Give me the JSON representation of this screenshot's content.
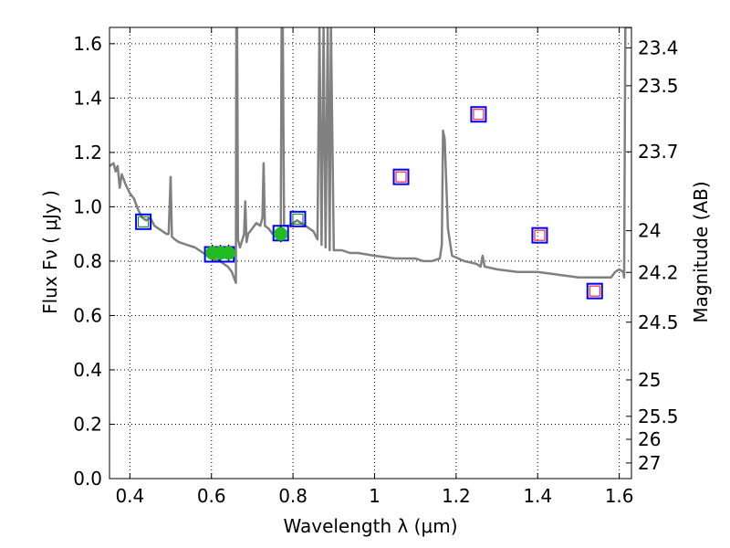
{
  "chart_data": {
    "type": "scatter",
    "xlabel": "Wavelength  λ (μm)",
    "ylabel": "Flux  Fν  ( μJy )",
    "y2label": "Magnitude (AB)",
    "xlim": [
      0.35,
      1.63
    ],
    "ylim": [
      0.0,
      1.66
    ],
    "grid": true,
    "x_ticks": [
      {
        "value": 0.4,
        "label": "0.4"
      },
      {
        "value": 0.6,
        "label": "0.6"
      },
      {
        "value": 0.8,
        "label": "0.8"
      },
      {
        "value": 1.0,
        "label": "1"
      },
      {
        "value": 1.2,
        "label": "1.2"
      },
      {
        "value": 1.4,
        "label": "1.4"
      },
      {
        "value": 1.6,
        "label": "1.6"
      }
    ],
    "y_ticks": [
      {
        "value": 0.0,
        "label": "0.0"
      },
      {
        "value": 0.2,
        "label": "0.2"
      },
      {
        "value": 0.4,
        "label": "0.4"
      },
      {
        "value": 0.6,
        "label": "0.6"
      },
      {
        "value": 0.8,
        "label": "0.8"
      },
      {
        "value": 1.0,
        "label": "1.0"
      },
      {
        "value": 1.2,
        "label": "1.2"
      },
      {
        "value": 1.4,
        "label": "1.4"
      },
      {
        "value": 1.6,
        "label": "1.6"
      }
    ],
    "y2_ticks": [
      {
        "value": 23.4,
        "label": "23.4"
      },
      {
        "value": 23.5,
        "label": "23.5"
      },
      {
        "value": 23.7,
        "label": "23.7"
      },
      {
        "value": 24,
        "label": "24"
      },
      {
        "value": 24.2,
        "label": "24.2"
      },
      {
        "value": 24.5,
        "label": "24.5"
      },
      {
        "value": 25,
        "label": "25"
      },
      {
        "value": 25.5,
        "label": "25.5"
      },
      {
        "value": 26,
        "label": "26"
      },
      {
        "value": 27,
        "label": "27"
      }
    ],
    "colors": {
      "model": "#808080",
      "box": "#0000ff",
      "inner_green": "#008000",
      "inner_red": "#ff0000",
      "point_fill": "#22bb22"
    },
    "model_spectrum": [
      [
        0.35,
        1.15
      ],
      [
        0.36,
        1.16
      ],
      [
        0.365,
        1.13
      ],
      [
        0.37,
        1.15
      ],
      [
        0.375,
        1.07
      ],
      [
        0.38,
        1.12
      ],
      [
        0.39,
        1.08
      ],
      [
        0.4,
        1.05
      ],
      [
        0.41,
        1.03
      ],
      [
        0.42,
        0.99
      ],
      [
        0.43,
        0.96
      ],
      [
        0.44,
        0.95
      ],
      [
        0.45,
        0.96
      ],
      [
        0.46,
        0.93
      ],
      [
        0.47,
        0.92
      ],
      [
        0.48,
        0.91
      ],
      [
        0.49,
        0.9
      ],
      [
        0.495,
        0.9
      ],
      [
        0.5,
        1.11
      ],
      [
        0.503,
        0.89
      ],
      [
        0.51,
        0.88
      ],
      [
        0.52,
        0.87
      ],
      [
        0.54,
        0.86
      ],
      [
        0.56,
        0.85
      ],
      [
        0.58,
        0.83
      ],
      [
        0.6,
        0.81
      ],
      [
        0.62,
        0.8
      ],
      [
        0.63,
        0.79
      ],
      [
        0.64,
        0.78
      ],
      [
        0.65,
        0.76
      ],
      [
        0.655,
        0.74
      ],
      [
        0.66,
        0.72
      ],
      [
        0.661,
        1.66
      ],
      [
        0.663,
        1.66
      ],
      [
        0.665,
        0.88
      ],
      [
        0.67,
        0.85
      ],
      [
        0.68,
        0.9
      ],
      [
        0.683,
        1.02
      ],
      [
        0.686,
        0.87
      ],
      [
        0.69,
        0.9
      ],
      [
        0.7,
        0.92
      ],
      [
        0.71,
        0.94
      ],
      [
        0.72,
        0.93
      ],
      [
        0.725,
        0.96
      ],
      [
        0.728,
        1.16
      ],
      [
        0.731,
        0.93
      ],
      [
        0.74,
        0.92
      ],
      [
        0.75,
        0.9
      ],
      [
        0.76,
        0.91
      ],
      [
        0.77,
        0.92
      ],
      [
        0.772,
        1.66
      ],
      [
        0.775,
        1.66
      ],
      [
        0.778,
        0.93
      ],
      [
        0.79,
        0.93
      ],
      [
        0.8,
        0.94
      ],
      [
        0.81,
        0.95
      ],
      [
        0.82,
        0.94
      ],
      [
        0.83,
        0.93
      ],
      [
        0.84,
        0.92
      ],
      [
        0.85,
        0.91
      ],
      [
        0.86,
        0.88
      ],
      [
        0.865,
        1.66
      ],
      [
        0.87,
        0.86
      ],
      [
        0.875,
        1.66
      ],
      [
        0.88,
        0.85
      ],
      [
        0.885,
        1.66
      ],
      [
        0.89,
        0.84
      ],
      [
        0.893,
        1.66
      ],
      [
        0.9,
        0.84
      ],
      [
        0.92,
        0.84
      ],
      [
        0.94,
        0.83
      ],
      [
        0.96,
        0.83
      ],
      [
        1.0,
        0.82
      ],
      [
        1.05,
        0.81
      ],
      [
        1.1,
        0.81
      ],
      [
        1.12,
        0.8
      ],
      [
        1.14,
        0.8
      ],
      [
        1.16,
        0.81
      ],
      [
        1.165,
        0.86
      ],
      [
        1.168,
        1.28
      ],
      [
        1.172,
        1.25
      ],
      [
        1.18,
        0.92
      ],
      [
        1.19,
        0.82
      ],
      [
        1.22,
        0.8
      ],
      [
        1.25,
        0.79
      ],
      [
        1.26,
        0.78
      ],
      [
        1.265,
        0.82
      ],
      [
        1.27,
        0.78
      ],
      [
        1.3,
        0.77
      ],
      [
        1.35,
        0.76
      ],
      [
        1.4,
        0.76
      ],
      [
        1.45,
        0.75
      ],
      [
        1.5,
        0.74
      ],
      [
        1.55,
        0.74
      ],
      [
        1.58,
        0.74
      ],
      [
        1.59,
        0.76
      ],
      [
        1.6,
        0.77
      ],
      [
        1.61,
        0.76
      ],
      [
        1.612,
        0.74
      ],
      [
        1.615,
        1.66
      ],
      [
        1.62,
        1.66
      ],
      [
        1.63,
        1.66
      ]
    ],
    "photometry_green": [
      [
        0.433,
        0.945
      ],
      [
        0.812,
        0.955
      ]
    ],
    "photometry_red": [
      [
        1.065,
        1.11
      ],
      [
        1.255,
        1.34
      ],
      [
        1.405,
        0.895
      ],
      [
        1.54,
        0.69
      ]
    ],
    "photometry_blank": [
      [
        0.602,
        0.825
      ],
      [
        0.637,
        0.825
      ],
      [
        0.77,
        0.903
      ]
    ],
    "grism_points": [
      [
        0.602,
        0.83
      ],
      [
        0.622,
        0.83
      ],
      [
        0.642,
        0.83
      ],
      [
        0.77,
        0.9
      ]
    ]
  }
}
